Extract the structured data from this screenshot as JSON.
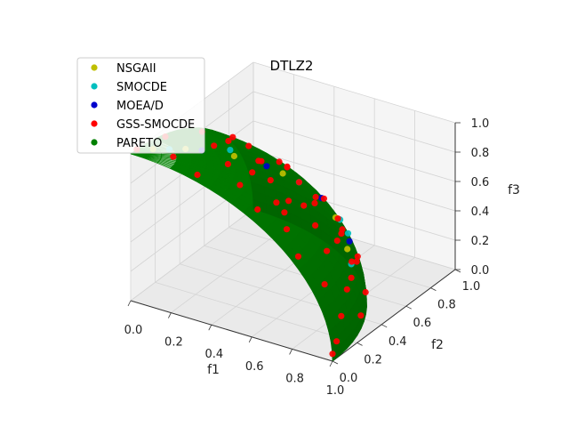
{
  "chart_data": {
    "type": "scatter",
    "projection": "3d",
    "title": "DTLZ2",
    "xlabel": "f1",
    "ylabel": "f2",
    "zlabel": "f3",
    "xlim": [
      0,
      1.0
    ],
    "ylim": [
      0,
      1.0
    ],
    "zlim": [
      0,
      1.0
    ],
    "xticks": [
      "0.0",
      "0.2",
      "0.4",
      "0.6",
      "0.8",
      "1.0"
    ],
    "yticks": [
      "0.0",
      "0.2",
      "0.4",
      "0.6",
      "0.8",
      "1.0"
    ],
    "zticks": [
      "0.0",
      "0.2",
      "0.4",
      "0.6",
      "0.8",
      "1.0"
    ],
    "grid": true,
    "legend_position": "top-left",
    "series": [
      {
        "name": "NSGAII",
        "color": "#bfbf00",
        "marker": "circle",
        "points": [
          [
            0.05,
            0.1,
            0.99
          ],
          [
            0.15,
            0.2,
            0.97
          ],
          [
            0.3,
            0.35,
            0.89
          ],
          [
            0.45,
            0.5,
            0.74
          ],
          [
            0.65,
            0.6,
            0.46
          ],
          [
            0.8,
            0.45,
            0.4
          ]
        ]
      },
      {
        "name": "SMOCDE",
        "color": "#00bfbf",
        "marker": "circle",
        "points": [
          [
            0.1,
            0.15,
            0.98
          ],
          [
            0.25,
            0.4,
            0.88
          ],
          [
            0.5,
            0.55,
            0.67
          ],
          [
            0.7,
            0.62,
            0.36
          ],
          [
            0.85,
            0.4,
            0.35
          ],
          [
            0.6,
            0.72,
            0.35
          ]
        ]
      },
      {
        "name": "MOEA/D",
        "color": "#0000cc",
        "marker": "circle",
        "points": [
          [
            0.2,
            0.25,
            0.95
          ],
          [
            0.4,
            0.45,
            0.8
          ],
          [
            0.55,
            0.65,
            0.52
          ],
          [
            0.75,
            0.55,
            0.37
          ]
        ]
      },
      {
        "name": "GSS-SMOCDE",
        "color": "#ff0000",
        "marker": "circle",
        "points": [
          [
            0.0,
            0.05,
            1.0
          ],
          [
            0.02,
            0.25,
            0.97
          ],
          [
            0.05,
            0.5,
            0.86
          ],
          [
            0.08,
            0.7,
            0.71
          ],
          [
            0.1,
            0.9,
            0.43
          ],
          [
            0.12,
            0.99,
            0.1
          ],
          [
            0.15,
            0.1,
            0.98
          ],
          [
            0.2,
            0.35,
            0.92
          ],
          [
            0.22,
            0.6,
            0.77
          ],
          [
            0.25,
            0.8,
            0.55
          ],
          [
            0.28,
            0.95,
            0.17
          ],
          [
            0.3,
            0.05,
            0.95
          ],
          [
            0.33,
            0.25,
            0.91
          ],
          [
            0.36,
            0.45,
            0.82
          ],
          [
            0.38,
            0.65,
            0.66
          ],
          [
            0.4,
            0.85,
            0.34
          ],
          [
            0.45,
            0.15,
            0.88
          ],
          [
            0.48,
            0.35,
            0.8
          ],
          [
            0.5,
            0.55,
            0.67
          ],
          [
            0.52,
            0.72,
            0.46
          ],
          [
            0.55,
            0.82,
            0.2
          ],
          [
            0.58,
            0.08,
            0.81
          ],
          [
            0.6,
            0.3,
            0.74
          ],
          [
            0.62,
            0.48,
            0.62
          ],
          [
            0.65,
            0.62,
            0.44
          ],
          [
            0.67,
            0.74,
            0.08
          ],
          [
            0.7,
            0.12,
            0.7
          ],
          [
            0.72,
            0.32,
            0.61
          ],
          [
            0.74,
            0.5,
            0.45
          ],
          [
            0.76,
            0.6,
            0.24
          ],
          [
            0.8,
            0.05,
            0.6
          ],
          [
            0.82,
            0.25,
            0.52
          ],
          [
            0.84,
            0.42,
            0.35
          ],
          [
            0.86,
            0.5,
            0.1
          ],
          [
            0.9,
            0.1,
            0.42
          ],
          [
            0.92,
            0.25,
            0.3
          ],
          [
            0.94,
            0.33,
            0.08
          ],
          [
            0.97,
            0.12,
            0.22
          ],
          [
            0.99,
            0.05,
            0.1
          ],
          [
            1.0,
            0.0,
            0.05
          ],
          [
            0.18,
            0.5,
            0.85
          ],
          [
            0.35,
            0.7,
            0.62
          ],
          [
            0.42,
            0.3,
            0.86
          ],
          [
            0.64,
            0.2,
            0.74
          ],
          [
            0.78,
            0.4,
            0.48
          ],
          [
            0.88,
            0.35,
            0.3
          ]
        ]
      },
      {
        "name": "PARETO",
        "color": "#008000",
        "marker": "circle",
        "surface": true
      }
    ]
  }
}
